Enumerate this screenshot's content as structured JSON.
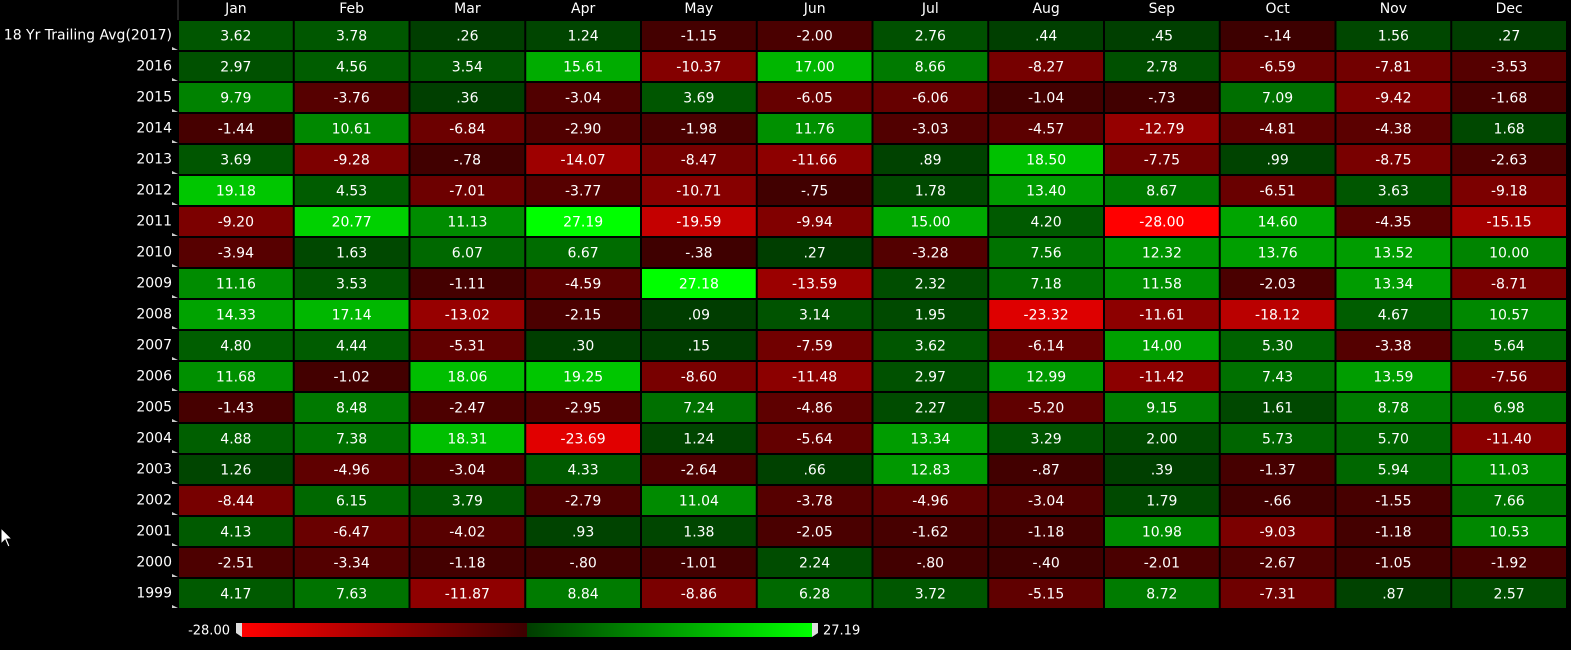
{
  "columns": [
    "Jan",
    "Feb",
    "Mar",
    "Apr",
    "May",
    "Jun",
    "Jul",
    "Aug",
    "Sep",
    "Oct",
    "Nov",
    "Dec"
  ],
  "rows": [
    {
      "label": "18 Yr Trailing Avg(2017)",
      "values": [
        "3.62",
        "3.78",
        ".26",
        "1.24",
        "-1.15",
        "-2.00",
        "2.76",
        ".44",
        ".45",
        "-.14",
        "1.56",
        ".27"
      ]
    },
    {
      "label": "2016",
      "values": [
        "2.97",
        "4.56",
        "3.54",
        "15.61",
        "-10.37",
        "17.00",
        "8.66",
        "-8.27",
        "2.78",
        "-6.59",
        "-7.81",
        "-3.53"
      ]
    },
    {
      "label": "2015",
      "values": [
        "9.79",
        "-3.76",
        ".36",
        "-3.04",
        "3.69",
        "-6.05",
        "-6.06",
        "-1.04",
        "-.73",
        "7.09",
        "-9.42",
        "-1.68"
      ]
    },
    {
      "label": "2014",
      "values": [
        "-1.44",
        "10.61",
        "-6.84",
        "-2.90",
        "-1.98",
        "11.76",
        "-3.03",
        "-4.57",
        "-12.79",
        "-4.81",
        "-4.38",
        "1.68"
      ]
    },
    {
      "label": "2013",
      "values": [
        "3.69",
        "-9.28",
        "-.78",
        "-14.07",
        "-8.47",
        "-11.66",
        ".89",
        "18.50",
        "-7.75",
        ".99",
        "-8.75",
        "-2.63"
      ]
    },
    {
      "label": "2012",
      "values": [
        "19.18",
        "4.53",
        "-7.01",
        "-3.77",
        "-10.71",
        "-.75",
        "1.78",
        "13.40",
        "8.67",
        "-6.51",
        "3.63",
        "-9.18"
      ]
    },
    {
      "label": "2011",
      "values": [
        "-9.20",
        "20.77",
        "11.13",
        "27.19",
        "-19.59",
        "-9.94",
        "15.00",
        "4.20",
        "-28.00",
        "14.60",
        "-4.35",
        "-15.15"
      ]
    },
    {
      "label": "2010",
      "values": [
        "-3.94",
        "1.63",
        "6.07",
        "6.67",
        "-.38",
        ".27",
        "-3.28",
        "7.56",
        "12.32",
        "13.76",
        "13.52",
        "10.00"
      ]
    },
    {
      "label": "2009",
      "values": [
        "11.16",
        "3.53",
        "-1.11",
        "-4.59",
        "27.18",
        "-13.59",
        "2.32",
        "7.18",
        "11.58",
        "-2.03",
        "13.34",
        "-8.71"
      ]
    },
    {
      "label": "2008",
      "values": [
        "14.33",
        "17.14",
        "-13.02",
        "-2.15",
        ".09",
        "3.14",
        "1.95",
        "-23.32",
        "-11.61",
        "-18.12",
        "4.67",
        "10.57"
      ]
    },
    {
      "label": "2007",
      "values": [
        "4.80",
        "4.44",
        "-5.31",
        ".30",
        ".15",
        "-7.59",
        "3.62",
        "-6.14",
        "14.00",
        "5.30",
        "-3.38",
        "5.64"
      ]
    },
    {
      "label": "2006",
      "values": [
        "11.68",
        "-1.02",
        "18.06",
        "19.25",
        "-8.60",
        "-11.48",
        "2.97",
        "12.99",
        "-11.42",
        "7.43",
        "13.59",
        "-7.56"
      ]
    },
    {
      "label": "2005",
      "values": [
        "-1.43",
        "8.48",
        "-2.47",
        "-2.95",
        "7.24",
        "-4.86",
        "2.27",
        "-5.20",
        "9.15",
        "1.61",
        "8.78",
        "6.98"
      ]
    },
    {
      "label": "2004",
      "values": [
        "4.88",
        "7.38",
        "18.31",
        "-23.69",
        "1.24",
        "-5.64",
        "13.34",
        "3.29",
        "2.00",
        "5.73",
        "5.70",
        "-11.40"
      ]
    },
    {
      "label": "2003",
      "values": [
        "1.26",
        "-4.96",
        "-3.04",
        "4.33",
        "-2.64",
        ".66",
        "12.83",
        "-.87",
        ".39",
        "-1.37",
        "5.94",
        "11.03"
      ]
    },
    {
      "label": "2002",
      "values": [
        "-8.44",
        "6.15",
        "3.79",
        "-2.79",
        "11.04",
        "-3.78",
        "-4.96",
        "-3.04",
        "1.79",
        "-.66",
        "-1.55",
        "7.66"
      ]
    },
    {
      "label": "2001",
      "values": [
        "4.13",
        "-6.47",
        "-4.02",
        ".93",
        "1.38",
        "-2.05",
        "-1.62",
        "-1.18",
        "10.98",
        "-9.03",
        "-1.18",
        "10.53"
      ]
    },
    {
      "label": "2000",
      "values": [
        "-2.51",
        "-3.34",
        "-1.18",
        "-.80",
        "-1.01",
        "2.24",
        "-.80",
        "-.40",
        "-2.01",
        "-2.67",
        "-1.05",
        "-1.92"
      ]
    },
    {
      "label": "1999",
      "values": [
        "4.17",
        "7.63",
        "-11.87",
        "8.84",
        "-8.86",
        "6.28",
        "3.72",
        "-5.15",
        "8.72",
        "-7.31",
        ".87",
        "2.57"
      ]
    }
  ],
  "scale": {
    "min": "-28.00",
    "max": "27.19"
  }
}
